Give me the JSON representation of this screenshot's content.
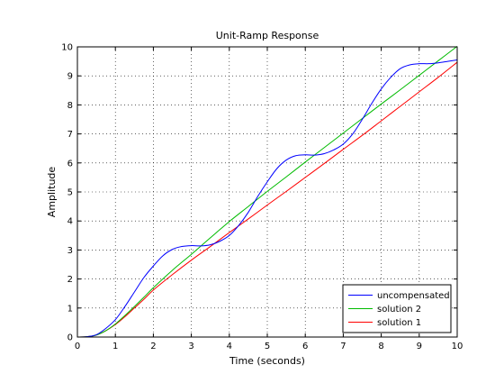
{
  "chart_data": {
    "type": "line",
    "title": "Unit-Ramp Response",
    "xlabel": "Time (seconds)",
    "ylabel": "Amplitude",
    "xlim": [
      0,
      10
    ],
    "ylim": [
      0,
      10
    ],
    "xticks": [
      0,
      1,
      2,
      3,
      4,
      5,
      6,
      7,
      8,
      9,
      10
    ],
    "yticks": [
      0,
      1,
      2,
      3,
      4,
      5,
      6,
      7,
      8,
      9,
      10
    ],
    "grid": true,
    "legend_position": "bottom-right",
    "series": [
      {
        "name": "uncompensated",
        "color": "#0000ff",
        "x": [
          0,
          0.25,
          0.5,
          0.75,
          1.0,
          1.25,
          1.5,
          1.75,
          2.0,
          2.25,
          2.5,
          2.75,
          3.0,
          3.25,
          3.5,
          3.75,
          4.0,
          4.25,
          4.5,
          4.75,
          5.0,
          5.25,
          5.5,
          5.75,
          6.0,
          6.25,
          6.5,
          6.75,
          7.0,
          7.25,
          7.5,
          7.75,
          8.0,
          8.25,
          8.5,
          8.75,
          9.0,
          9.25,
          9.5,
          9.75,
          10.0
        ],
        "y": [
          0,
          0.01,
          0.08,
          0.3,
          0.6,
          1.05,
          1.55,
          2.05,
          2.45,
          2.8,
          3.02,
          3.12,
          3.15,
          3.14,
          3.18,
          3.3,
          3.5,
          3.85,
          4.3,
          4.85,
          5.35,
          5.8,
          6.1,
          6.25,
          6.28,
          6.27,
          6.32,
          6.45,
          6.65,
          7.0,
          7.5,
          8.05,
          8.55,
          8.95,
          9.25,
          9.38,
          9.42,
          9.42,
          9.45,
          9.5,
          9.55
        ]
      },
      {
        "name": "solution 2",
        "color": "#00bb00",
        "x": [
          0,
          0.25,
          0.5,
          0.75,
          1.0,
          1.25,
          1.5,
          1.75,
          2.0,
          2.5,
          3.0,
          3.5,
          4.0,
          4.5,
          5.0,
          5.5,
          6.0,
          6.5,
          7.0,
          7.5,
          8.0,
          8.5,
          9.0,
          9.5,
          10.0
        ],
        "y": [
          0,
          0.01,
          0.07,
          0.22,
          0.45,
          0.74,
          1.05,
          1.37,
          1.7,
          2.3,
          2.85,
          3.42,
          3.98,
          4.5,
          5.02,
          5.52,
          6.03,
          6.53,
          7.03,
          7.53,
          8.03,
          8.52,
          9.02,
          9.52,
          10.02
        ]
      },
      {
        "name": "solution 1",
        "color": "#ff0000",
        "x": [
          0,
          0.25,
          0.5,
          0.75,
          1.0,
          1.25,
          1.5,
          1.75,
          2.0,
          2.5,
          3.0,
          3.5,
          4.0,
          4.5,
          5.0,
          5.5,
          6.0,
          6.5,
          7.0,
          7.5,
          8.0,
          8.5,
          9.0,
          9.5,
          10.0
        ],
        "y": [
          0,
          0.01,
          0.07,
          0.22,
          0.43,
          0.7,
          1.0,
          1.3,
          1.62,
          2.15,
          2.65,
          3.12,
          3.6,
          4.07,
          4.55,
          5.02,
          5.5,
          5.98,
          6.47,
          6.95,
          7.45,
          7.95,
          8.45,
          8.95,
          9.47
        ]
      }
    ]
  }
}
